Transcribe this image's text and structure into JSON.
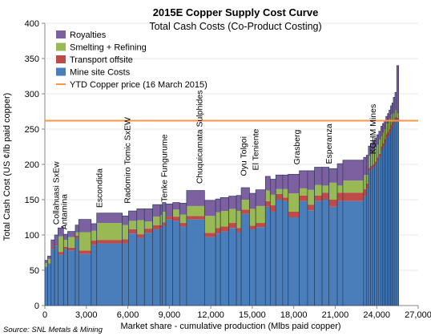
{
  "chart_data": {
    "type": "stacked-bar-cost-curve",
    "title": "2015E Copper Supply Cost Curve",
    "subtitle": "Total Cash Costs (Co-Product Costing)",
    "xlabel": "Market share - cumulative production (Mlbs paid copper)",
    "ylabel": "Total Cash Cost (US ¢/lb paid copper)",
    "source": "Source: SNL Metals & Mining",
    "xlim": [
      0,
      27000
    ],
    "ylim": [
      0,
      400
    ],
    "x_ticks": [
      "0",
      "3,000",
      "6,000",
      "9,000",
      "12,000",
      "15,000",
      "18,000",
      "21,000",
      "24,000",
      "27,000"
    ],
    "y_ticks": [
      "0",
      "50",
      "100",
      "150",
      "200",
      "250",
      "300",
      "350",
      "400"
    ],
    "colors": {
      "mine_site": "#4a7ebb",
      "transport": "#be4b48",
      "smelting": "#98b954",
      "royalties": "#7d60a0",
      "price_line": "#f79646",
      "bar_edge": "#2b3e5c"
    },
    "legend": {
      "position": "top-left",
      "items": [
        {
          "label": "Royalties",
          "key": "royalties",
          "kind": "box"
        },
        {
          "label": "Smelting + Refining",
          "key": "smelting",
          "kind": "box"
        },
        {
          "label": "Transport offsite",
          "key": "transport",
          "kind": "box"
        },
        {
          "label": "Mine site Costs",
          "key": "mine_site",
          "kind": "box"
        },
        {
          "label": "YTD Copper price (16 March 2015)",
          "key": "price_line",
          "kind": "line"
        }
      ]
    },
    "price_line": {
      "label": "YTD Copper price (16 March 2015)",
      "value": 262
    },
    "annotations": [
      {
        "text": "Collahuasi SxEw",
        "x": 780,
        "y": 110
      },
      {
        "text": "Antamina",
        "x": 1350,
        "y": 103
      },
      {
        "text": "Escondida",
        "x": 3900,
        "y": 134
      },
      {
        "text": "Radomiro Tomic SxEW",
        "x": 5950,
        "y": 140
      },
      {
        "text": "Tenke Fungurume",
        "x": 8600,
        "y": 142
      },
      {
        "text": "Chuquicamata Sulphides",
        "x": 11150,
        "y": 168
      },
      {
        "text": "Oyu Tolgoi",
        "x": 14350,
        "y": 179
      },
      {
        "text": "El Teniente",
        "x": 15200,
        "y": 187
      },
      {
        "text": "Grasberg",
        "x": 18200,
        "y": 195
      },
      {
        "text": "Esperanza",
        "x": 20500,
        "y": 196
      },
      {
        "text": "KGHM Mines",
        "x": 23700,
        "y": 210
      }
    ],
    "bars_columns": [
      "width_mlbs",
      "mine_site",
      "transport",
      "smelting",
      "royalties"
    ],
    "bars": [
      [
        200,
        55,
        0,
        5,
        4
      ],
      [
        250,
        60,
        0,
        6,
        4
      ],
      [
        250,
        80,
        3,
        0,
        10
      ],
      [
        250,
        85,
        3,
        0,
        12
      ],
      [
        400,
        72,
        4,
        22,
        12
      ],
      [
        300,
        80,
        3,
        10,
        8
      ],
      [
        550,
        78,
        4,
        15,
        8
      ],
      [
        250,
        95,
        4,
        5,
        10
      ],
      [
        900,
        73,
        5,
        26,
        18
      ],
      [
        400,
        86,
        6,
        14,
        10
      ],
      [
        1850,
        88,
        5,
        24,
        14
      ],
      [
        450,
        88,
        6,
        20,
        13
      ],
      [
        600,
        102,
        6,
        12,
        14
      ],
      [
        550,
        96,
        5,
        20,
        16
      ],
      [
        600,
        103,
        6,
        10,
        18
      ],
      [
        550,
        108,
        6,
        12,
        17
      ],
      [
        150,
        110,
        4,
        14,
        15
      ],
      [
        250,
        113,
        5,
        15,
        13
      ],
      [
        500,
        122,
        4,
        0,
        18
      ],
      [
        500,
        120,
        6,
        10,
        10
      ],
      [
        500,
        112,
        5,
        12,
        16
      ],
      [
        1300,
        122,
        5,
        14,
        22
      ],
      [
        800,
        97,
        6,
        24,
        22
      ],
      [
        350,
        102,
        8,
        22,
        19
      ],
      [
        600,
        105,
        7,
        22,
        19
      ],
      [
        550,
        110,
        7,
        20,
        18
      ],
      [
        350,
        104,
        6,
        24,
        22
      ],
      [
        600,
        130,
        6,
        14,
        17
      ],
      [
        450,
        108,
        5,
        24,
        22
      ],
      [
        700,
        111,
        6,
        24,
        23
      ],
      [
        350,
        140,
        8,
        15,
        20
      ],
      [
        400,
        133,
        9,
        15,
        22
      ],
      [
        500,
        150,
        8,
        7,
        20
      ],
      [
        400,
        148,
        5,
        12,
        20
      ],
      [
        800,
        125,
        8,
        26,
        27
      ],
      [
        600,
        148,
        8,
        10,
        25
      ],
      [
        500,
        135,
        8,
        21,
        27
      ],
      [
        550,
        148,
        8,
        15,
        25
      ],
      [
        500,
        150,
        10,
        10,
        26
      ],
      [
        600,
        140,
        10,
        24,
        20
      ],
      [
        400,
        148,
        12,
        10,
        31
      ],
      [
        1500,
        148,
        12,
        17,
        29
      ],
      [
        200,
        155,
        10,
        20,
        25
      ],
      [
        150,
        165,
        8,
        12,
        28
      ],
      [
        150,
        190,
        5,
        17,
        14
      ],
      [
        150,
        193,
        5,
        18,
        14
      ],
      [
        150,
        195,
        5,
        18,
        15
      ],
      [
        150,
        200,
        4,
        20,
        13
      ],
      [
        150,
        205,
        5,
        18,
        14
      ],
      [
        150,
        210,
        5,
        20,
        12
      ],
      [
        120,
        220,
        5,
        15,
        14
      ],
      [
        120,
        225,
        5,
        15,
        13
      ],
      [
        120,
        230,
        6,
        14,
        12
      ],
      [
        120,
        238,
        5,
        15,
        10
      ],
      [
        110,
        240,
        6,
        12,
        14
      ],
      [
        110,
        245,
        5,
        15,
        12
      ],
      [
        100,
        250,
        6,
        15,
        12
      ],
      [
        100,
        255,
        5,
        12,
        15
      ],
      [
        120,
        258,
        6,
        8,
        23
      ],
      [
        130,
        262,
        5,
        10,
        25
      ],
      [
        140,
        262,
        4,
        6,
        68
      ]
    ]
  }
}
